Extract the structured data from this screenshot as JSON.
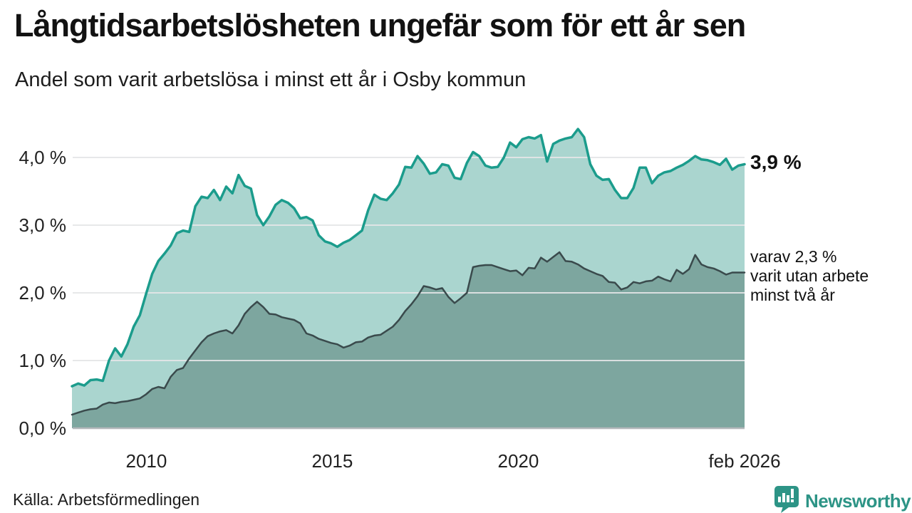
{
  "header": {
    "title": "Långtidsarbetslösheten ungefär som för ett år sen",
    "subtitle": "Andel som varit arbetslösa i minst ett år i Osby kommun"
  },
  "chart_data": {
    "type": "area",
    "title": "Långtidsarbetslösheten ungefär som för ett år sen",
    "subtitle": "Andel som varit arbetslösa i minst ett år i Osby kommun",
    "unit": "%",
    "x_start": 2008.0,
    "x_end": 2026.083,
    "ylim": [
      0,
      4.6
    ],
    "grid": true,
    "x_ticks": [
      {
        "value": 2010,
        "label": "2010"
      },
      {
        "value": 2015,
        "label": "2015"
      },
      {
        "value": 2020,
        "label": "2020"
      },
      {
        "value": 2026.083,
        "label": "feb 2026"
      }
    ],
    "y_ticks": [
      {
        "value": 0,
        "label": "0,0 %"
      },
      {
        "value": 1,
        "label": "1,0 %"
      },
      {
        "value": 2,
        "label": "2,0 %"
      },
      {
        "value": 3,
        "label": "3,0 %"
      },
      {
        "value": 4,
        "label": "4,0 %"
      }
    ],
    "series": [
      {
        "name": "Arbetslösa minst ett år",
        "line_color": "#1b9c8c",
        "fill_color": "#aad5cf",
        "line_width": 3.5,
        "values": [
          0.62,
          0.66,
          0.63,
          0.71,
          0.72,
          0.7,
          1.0,
          1.18,
          1.06,
          1.24,
          1.5,
          1.67,
          1.98,
          2.28,
          2.47,
          2.58,
          2.7,
          2.88,
          2.92,
          2.9,
          3.28,
          3.42,
          3.4,
          3.52,
          3.37,
          3.57,
          3.47,
          3.74,
          3.58,
          3.54,
          3.15,
          3.0,
          3.13,
          3.3,
          3.37,
          3.33,
          3.25,
          3.1,
          3.12,
          3.07,
          2.85,
          2.76,
          2.73,
          2.68,
          2.74,
          2.78,
          2.85,
          2.92,
          3.22,
          3.45,
          3.39,
          3.37,
          3.47,
          3.6,
          3.86,
          3.85,
          4.02,
          3.91,
          3.76,
          3.78,
          3.9,
          3.88,
          3.7,
          3.68,
          3.92,
          4.08,
          4.02,
          3.88,
          3.85,
          3.86,
          4.0,
          4.22,
          4.15,
          4.27,
          4.3,
          4.28,
          4.33,
          3.94,
          4.2,
          4.25,
          4.28,
          4.3,
          4.42,
          4.3,
          3.9,
          3.73,
          3.67,
          3.68,
          3.52,
          3.4,
          3.4,
          3.55,
          3.85,
          3.85,
          3.62,
          3.73,
          3.78,
          3.8,
          3.85,
          3.89,
          3.95,
          4.02,
          3.97,
          3.96,
          3.93,
          3.89,
          3.98,
          3.82,
          3.88,
          3.9
        ]
      },
      {
        "name": "Arbetslösa minst två år",
        "line_color": "#3a4a4c",
        "fill_color": "#7da69f",
        "line_width": 2.5,
        "values": [
          0.2,
          0.23,
          0.26,
          0.28,
          0.29,
          0.35,
          0.38,
          0.37,
          0.39,
          0.4,
          0.42,
          0.44,
          0.5,
          0.58,
          0.61,
          0.59,
          0.76,
          0.86,
          0.89,
          1.03,
          1.15,
          1.27,
          1.36,
          1.4,
          1.43,
          1.45,
          1.4,
          1.52,
          1.69,
          1.79,
          1.87,
          1.79,
          1.69,
          1.68,
          1.64,
          1.62,
          1.6,
          1.55,
          1.4,
          1.37,
          1.32,
          1.29,
          1.26,
          1.24,
          1.19,
          1.22,
          1.27,
          1.28,
          1.34,
          1.37,
          1.38,
          1.44,
          1.5,
          1.6,
          1.73,
          1.83,
          1.95,
          2.1,
          2.08,
          2.05,
          2.07,
          1.94,
          1.85,
          1.92,
          2.0,
          2.38,
          2.4,
          2.41,
          2.41,
          2.38,
          2.35,
          2.32,
          2.33,
          2.26,
          2.37,
          2.36,
          2.52,
          2.46,
          2.53,
          2.6,
          2.47,
          2.46,
          2.42,
          2.36,
          2.32,
          2.28,
          2.25,
          2.16,
          2.15,
          2.05,
          2.08,
          2.16,
          2.14,
          2.17,
          2.18,
          2.24,
          2.2,
          2.17,
          2.34,
          2.28,
          2.35,
          2.56,
          2.42,
          2.38,
          2.36,
          2.32,
          2.27,
          2.3,
          2.3,
          2.3
        ]
      }
    ],
    "annotations": {
      "total_label": "3,9 %",
      "two_year_lines": [
        "varav 2,3 %",
        "varit utan arbete",
        "minst två år"
      ]
    }
  },
  "footer": {
    "source": "Källa: Arbetsförmedlingen",
    "brand": "Newsworthy"
  },
  "colors": {
    "accent_teal": "#1b9c8c",
    "light_fill": "#aad5cf",
    "dark_fill": "#7da69f",
    "dark_line": "#3a4a4c",
    "brand_teal": "#2d9486",
    "gridline": "#e4e6e7",
    "baseline": "#b4b8bb"
  }
}
